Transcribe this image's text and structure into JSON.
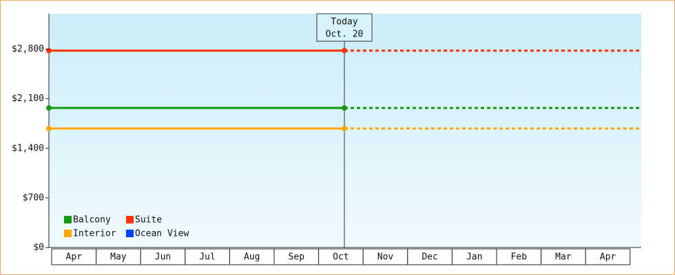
{
  "chart_data": {
    "type": "line",
    "categories": [
      "Apr",
      "May",
      "Jun",
      "Jul",
      "Aug",
      "Sep",
      "Oct",
      "Nov",
      "Dec",
      "Jan",
      "Feb",
      "Mar",
      "Apr"
    ],
    "annotation": {
      "title": "Today",
      "date": "Oct. 20"
    },
    "series": [
      {
        "name": "Balcony",
        "color": "#119911",
        "value": 1970
      },
      {
        "name": "Suite",
        "color": "#ff3300",
        "value": 2780
      },
      {
        "name": "Interior",
        "color": "#ffa500",
        "value": 1680
      },
      {
        "name": "Ocean View",
        "color": "#0044ff",
        "value": null
      }
    ],
    "ylim": [
      0,
      3300
    ],
    "yticks": [
      {
        "value": 0,
        "label": "$0"
      },
      {
        "value": 700,
        "label": "$700"
      },
      {
        "value": 1400,
        "label": "$1,400"
      },
      {
        "value": 2100,
        "label": "$2,100"
      },
      {
        "value": 2800,
        "label": "$2,800"
      }
    ]
  }
}
